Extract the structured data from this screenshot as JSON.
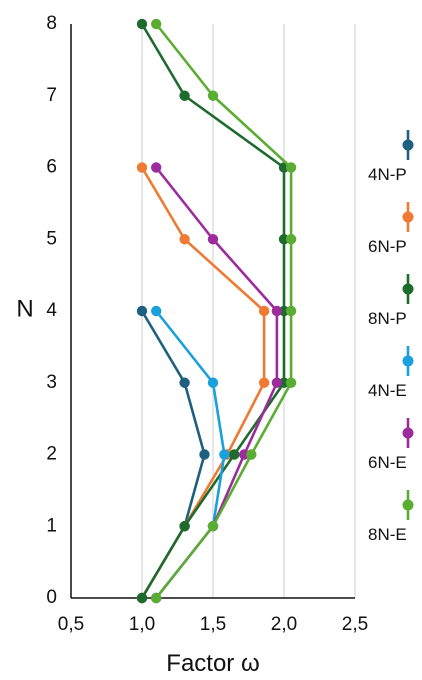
{
  "chart_data": {
    "type": "line",
    "xlabel": "Factor ω",
    "ylabel": "N",
    "xlim": [
      0.5,
      2.5
    ],
    "ylim": [
      0,
      8
    ],
    "x_ticks": [
      0.5,
      1.0,
      1.5,
      2.0,
      2.5
    ],
    "x_tick_labels": [
      "0,5",
      "1,0",
      "1,5",
      "2,0",
      "2,5"
    ],
    "y_ticks": [
      0,
      1,
      2,
      3,
      4,
      5,
      6,
      7,
      8
    ],
    "y_tick_labels": [
      "0",
      "1",
      "2",
      "3",
      "4",
      "5",
      "6",
      "7",
      "8"
    ],
    "grid": "vertical",
    "legend_position": "right",
    "series": [
      {
        "name": "4N-P",
        "color": "#1f5f7f",
        "x": [
          1.0,
          1.3,
          1.44,
          1.3,
          1.0
        ],
        "y": [
          0,
          1,
          2,
          3,
          4
        ]
      },
      {
        "name": "6N-P",
        "color": "#ee7a33",
        "x": [
          1.0,
          1.3,
          1.6,
          1.86,
          1.86,
          1.3,
          1.0
        ],
        "y": [
          0,
          1,
          2,
          3,
          4,
          5,
          6
        ]
      },
      {
        "name": "8N-P",
        "color": "#1e6b2e",
        "x": [
          1.0,
          1.3,
          1.65,
          2.0,
          2.0,
          2.0,
          2.0,
          1.3,
          1.0
        ],
        "y": [
          0,
          1,
          2,
          3,
          4,
          5,
          6,
          7,
          8
        ]
      },
      {
        "name": "4N-E",
        "color": "#1aa0da",
        "x": [
          1.1,
          1.5,
          1.58,
          1.5,
          1.1
        ],
        "y": [
          0,
          1,
          2,
          3,
          4
        ]
      },
      {
        "name": "6N-E",
        "color": "#9c2b9c",
        "x": [
          1.1,
          1.5,
          1.72,
          1.95,
          1.95,
          1.5,
          1.1
        ],
        "y": [
          0,
          1,
          2,
          3,
          4,
          5,
          6
        ]
      },
      {
        "name": "8N-E",
        "color": "#5aad32",
        "x": [
          1.1,
          1.5,
          1.77,
          2.05,
          2.05,
          2.05,
          2.05,
          1.5,
          1.1
        ],
        "y": [
          0,
          1,
          2,
          3,
          4,
          5,
          6,
          7,
          8
        ]
      }
    ]
  }
}
